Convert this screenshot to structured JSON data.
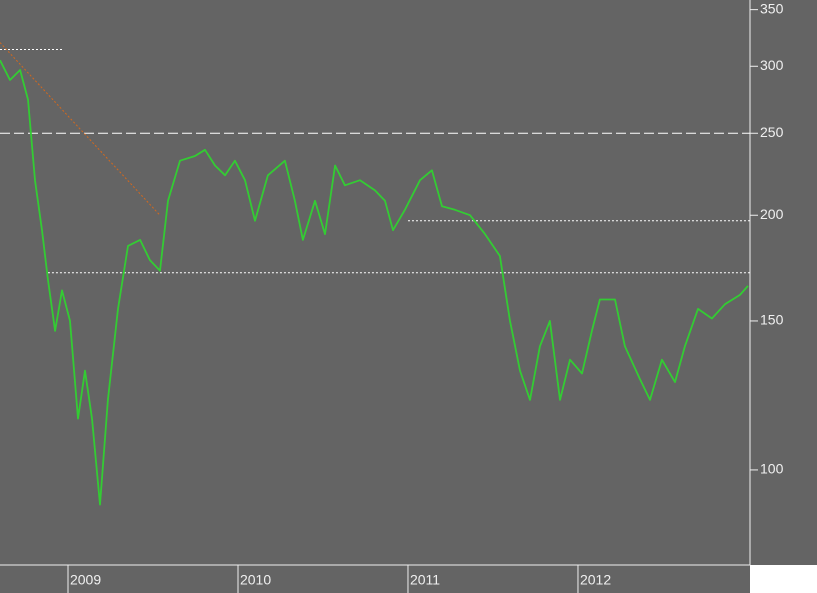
{
  "chart_data": {
    "type": "line",
    "log_scale": true,
    "x": [
      2008.6,
      2008.659,
      2008.718,
      2008.765,
      2008.806,
      2008.847,
      2008.882,
      2008.924,
      2008.965,
      2009.012,
      2009.059,
      2009.1,
      2009.141,
      2009.188,
      2009.235,
      2009.294,
      2009.353,
      2009.424,
      2009.482,
      2009.541,
      2009.588,
      2009.659,
      2009.747,
      2009.806,
      2009.865,
      2009.924,
      2009.982,
      2010.041,
      2010.1,
      2010.176,
      2010.276,
      2010.335,
      2010.382,
      2010.453,
      2010.512,
      2010.571,
      2010.629,
      2010.718,
      2010.806,
      2010.865,
      2010.912,
      2010.982,
      2011.071,
      2011.141,
      2011.2,
      2011.276,
      2011.365,
      2011.453,
      2011.541,
      2011.6,
      2011.659,
      2011.718,
      2011.776,
      2011.835,
      2011.894,
      2011.953,
      2012.024,
      2012.082,
      2012.129,
      2012.218,
      2012.276,
      2012.365,
      2012.424,
      2012.494,
      2012.571,
      2012.629,
      2012.706,
      2012.788,
      2012.865,
      2012.953,
      2013.0
    ],
    "series": [
      {
        "color": "#33cc33",
        "values": [
          305,
          289,
          297,
          274,
          220,
          192,
          168,
          146,
          163,
          150,
          115,
          131,
          115,
          91,
          121,
          155,
          184,
          187,
          177,
          172,
          208,
          232,
          235,
          239,
          229,
          223,
          232,
          220,
          197,
          223,
          232,
          208,
          187,
          208,
          190,
          229,
          217,
          220,
          214,
          208,
          192,
          203,
          220,
          226,
          205,
          203,
          200,
          190,
          179,
          150,
          131,
          121,
          140,
          150,
          121,
          135,
          130,
          146,
          159,
          159,
          140,
          128,
          121,
          135,
          127,
          140,
          155,
          151,
          157,
          161,
          165
        ]
      }
    ],
    "xlim": [
      2008.6,
      2013.012
    ],
    "xticks": [
      2009,
      2010,
      2011,
      2012
    ],
    "ylim": [
      77.2,
      359.3
    ],
    "yticks": [
      100,
      150,
      200,
      250,
      300,
      350
    ],
    "reference_lines": [
      {
        "y": 250,
        "x": [
          2008.6,
          2013.012
        ],
        "style": "dashed",
        "color": "#ffffff"
      },
      {
        "y": 171,
        "x": [
          2008.882,
          2013.012
        ],
        "style": "dotted",
        "color": "#ffffff"
      },
      {
        "y": 197,
        "x": [
          2011.0,
          2013.012
        ],
        "style": "dotted",
        "color": "#ffffff"
      },
      {
        "y": 314,
        "x": [
          2008.6,
          2008.971
        ],
        "style": "dotted",
        "color": "#ffffff"
      }
    ],
    "trend_line": {
      "x": [
        2008.6,
        2009.541
      ],
      "values": [
        320,
        200
      ],
      "color": "#d2691e"
    }
  }
}
